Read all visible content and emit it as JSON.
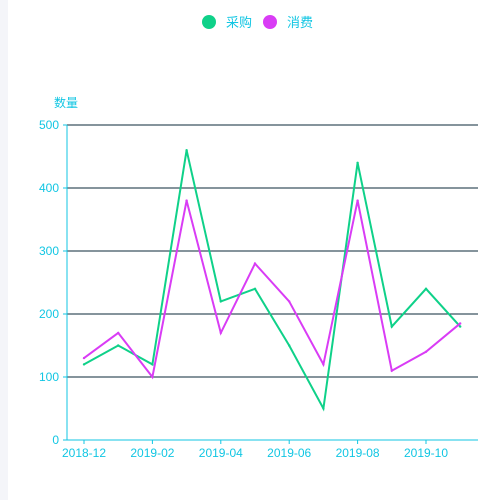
{
  "chart_data": {
    "type": "line",
    "ylabel": "数量",
    "ylim": [
      0,
      500
    ],
    "yticks": [
      0,
      100,
      200,
      300,
      400,
      500
    ],
    "x": [
      "2018-12",
      "2019-01",
      "2019-02",
      "2019-03",
      "2019-04",
      "2019-05",
      "2019-06",
      "2019-07",
      "2019-08",
      "2019-09",
      "2019-10",
      "2019-11"
    ],
    "xtick_labels": [
      "2018-12",
      "2019-02",
      "2019-04",
      "2019-06",
      "2019-08",
      "2019-10"
    ],
    "legend_position": "top-center",
    "grid": true,
    "series": [
      {
        "name": "采购",
        "color": "#0fd189",
        "values": [
          120,
          150,
          120,
          460,
          220,
          240,
          150,
          50,
          440,
          180,
          240,
          180
        ]
      },
      {
        "name": "消费",
        "color": "#d93cf5",
        "values": [
          130,
          170,
          100,
          380,
          170,
          280,
          220,
          120,
          380,
          110,
          140,
          185
        ]
      }
    ]
  },
  "colors": {
    "axis": "#11c6e3",
    "grid": "#0b2a3a",
    "text": "#11c6e3"
  }
}
